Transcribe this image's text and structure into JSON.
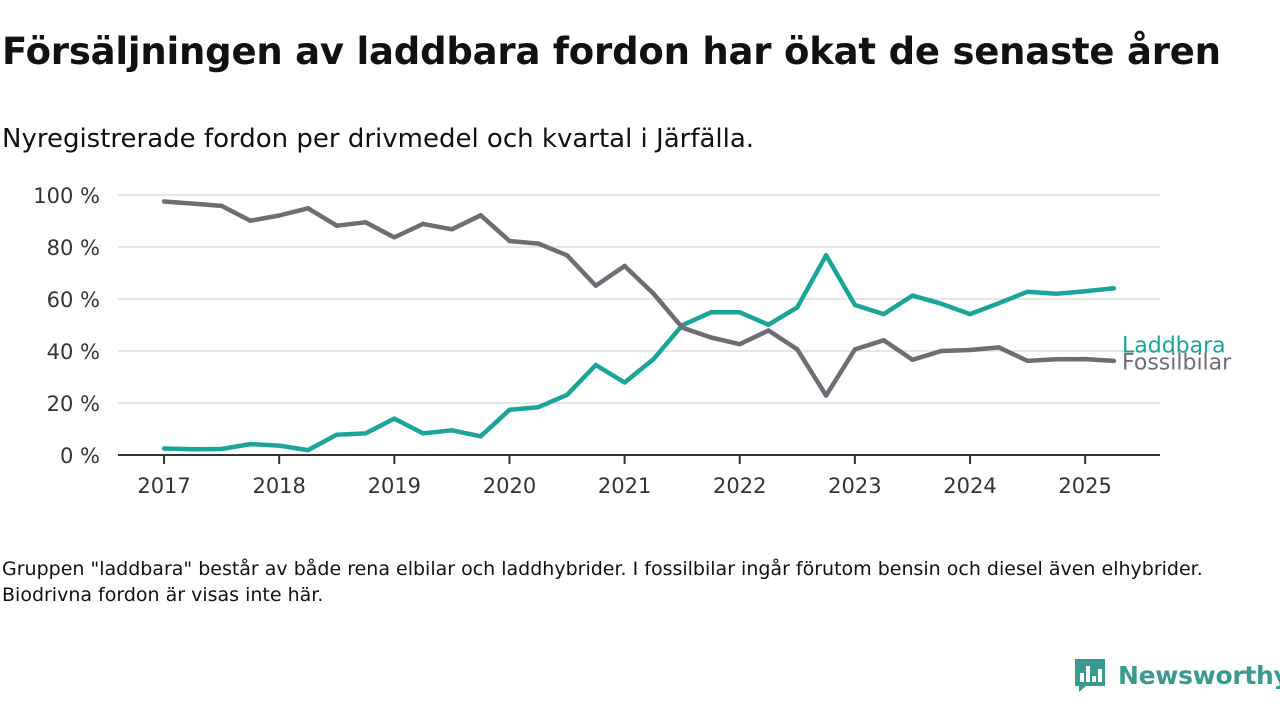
{
  "title": "Försäljningen av laddbara fordon har ökat de senaste åren",
  "subtitle": "Nyregistrerade fordon per drivmedel och kvartal i Järfälla.",
  "footnote": "Gruppen \"laddbara\" består av både rena elbilar och laddhybrider. I fossilbilar ingår förutom bensin och diesel även elhybrider. Biodrivna fordon är visas inte här.",
  "brand": {
    "name": "Newsworthy",
    "color": "#3a9a8f",
    "icon": "bar-chart-speech-bubble-icon"
  },
  "chart_data": {
    "type": "line",
    "x_unit": "year (quarterly points)",
    "x_ticks": [
      2017,
      2018,
      2019,
      2020,
      2021,
      2022,
      2023,
      2024,
      2025
    ],
    "y_ticks": [
      0,
      20,
      40,
      60,
      80,
      100
    ],
    "y_tick_suffix": " %",
    "ylim": [
      0,
      100
    ],
    "xlim": [
      2016.6,
      2025.65
    ],
    "grid": "horizontal",
    "legend": "direct labels at line ends (right)",
    "x": [
      2017,
      2017.25,
      2017.5,
      2017.75,
      2018,
      2018.25,
      2018.5,
      2018.75,
      2019,
      2019.25,
      2019.5,
      2019.75,
      2020,
      2020.25,
      2020.5,
      2020.75,
      2021,
      2021.25,
      2021.5,
      2021.75,
      2022,
      2022.25,
      2022.5,
      2022.75,
      2023,
      2023.25,
      2023.5,
      2023.75,
      2024,
      2024.25,
      2024.5,
      2024.75,
      2025,
      2025.25
    ],
    "series": [
      {
        "name": "Laddbara",
        "color": "#1aa59a",
        "values": [
          2.5,
          2.2,
          2.3,
          4.2,
          3.6,
          1.9,
          7.8,
          8.3,
          14.0,
          8.3,
          9.5,
          7.2,
          17.4,
          18.4,
          23.1,
          34.6,
          27.9,
          36.8,
          49.9,
          54.9,
          54.9,
          50.1,
          56.8,
          76.8,
          57.7,
          54.2,
          61.3,
          58.2,
          54.2,
          58.4,
          62.8,
          62.0,
          63.0,
          64.1
        ]
      },
      {
        "name": "Fossilbilar",
        "color": "#6e6d75",
        "values": [
          97.5,
          96.7,
          95.8,
          90.1,
          92.1,
          94.9,
          88.2,
          89.5,
          83.7,
          88.9,
          86.8,
          92.2,
          82.3,
          81.3,
          76.8,
          65.1,
          72.7,
          62.1,
          49.0,
          45.2,
          42.6,
          47.9,
          40.6,
          22.9,
          40.6,
          44.1,
          36.6,
          40.0,
          40.4,
          41.4,
          36.2,
          36.8,
          36.9,
          36.2
        ]
      }
    ]
  }
}
